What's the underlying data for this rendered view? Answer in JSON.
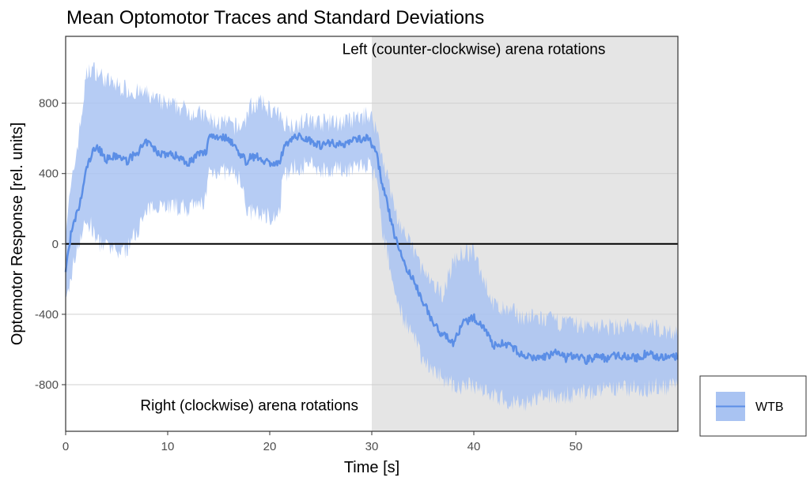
{
  "chart_data": {
    "type": "line",
    "title": "Mean Optomotor Traces and Standard Deviations",
    "xlabel": "Time [s]",
    "ylabel": "Optomotor Response [rel. units]",
    "xlim": [
      0,
      60
    ],
    "ylim": [
      -1065,
      1180
    ],
    "xticks": [
      0,
      10,
      20,
      30,
      40,
      50
    ],
    "xtick_labels": [
      "0",
      "10",
      "20",
      "30",
      "40",
      "50"
    ],
    "yticks": [
      -800,
      -400,
      0,
      400,
      800
    ],
    "ytick_labels": [
      "-800",
      "-400",
      "0",
      "400",
      "800"
    ],
    "grid": true,
    "reference_line": {
      "y": 0,
      "color": "#000000"
    },
    "shaded_region": {
      "x_start": 30,
      "x_end": 60,
      "color": "#e5e5e5"
    },
    "annotations": [
      {
        "text": "Left (counter-clockwise) arena rotations",
        "x": 40,
        "y": 1080
      },
      {
        "text": "Right (clockwise) arena rotations",
        "x": 18,
        "y": -945
      }
    ],
    "legend": {
      "position": "bottom-right",
      "entries": [
        {
          "label": "WTB",
          "line_color": "#5b8ee6",
          "fill_color": "#a9c3f2"
        }
      ]
    },
    "series": [
      {
        "name": "WTB",
        "line_color": "#5b8ee6",
        "band_color": "#a9c3f2",
        "x": [
          0,
          0.5,
          1,
          1.5,
          2,
          2.5,
          3,
          4,
          5,
          6,
          7,
          8,
          9,
          10,
          11,
          12,
          13,
          13.8,
          14,
          15,
          16,
          17,
          17.8,
          18,
          19,
          20,
          21,
          21.2,
          22,
          23,
          24,
          25,
          26,
          27,
          28,
          29,
          29.8,
          30.5,
          31,
          31.5,
          32,
          32.5,
          33,
          33.5,
          34,
          35,
          36,
          37,
          38,
          39,
          40,
          41,
          41.5,
          42,
          43,
          44,
          45,
          46,
          47,
          48,
          49,
          50,
          51,
          52,
          53,
          54,
          55,
          56,
          57,
          58,
          59,
          60
        ],
        "mean": [
          -150,
          50,
          150,
          250,
          420,
          500,
          560,
          480,
          500,
          470,
          520,
          580,
          520,
          510,
          500,
          460,
          510,
          520,
          620,
          610,
          600,
          520,
          460,
          500,
          490,
          460,
          450,
          520,
          600,
          610,
          590,
          560,
          580,
          560,
          590,
          600,
          600,
          500,
          350,
          230,
          100,
          0,
          -80,
          -150,
          -200,
          -320,
          -450,
          -520,
          -560,
          -450,
          -420,
          -470,
          -530,
          -580,
          -560,
          -600,
          -640,
          -650,
          -640,
          -620,
          -650,
          -630,
          -660,
          -640,
          -650,
          -630,
          -640,
          -650,
          -620,
          -640,
          -650,
          -640
        ],
        "sd_upper": [
          100,
          300,
          500,
          700,
          950,
          1000,
          980,
          930,
          900,
          880,
          860,
          850,
          810,
          790,
          780,
          760,
          740,
          720,
          700,
          690,
          680,
          660,
          720,
          780,
          800,
          770,
          720,
          700,
          680,
          690,
          700,
          690,
          690,
          690,
          700,
          720,
          740,
          650,
          500,
          400,
          250,
          150,
          80,
          20,
          -20,
          -150,
          -250,
          -280,
          -100,
          -50,
          -50,
          -200,
          -280,
          -350,
          -380,
          -390,
          -420,
          -420,
          -430,
          -440,
          -450,
          -460,
          -470,
          -460,
          -480,
          -470,
          -460,
          -490,
          -470,
          -480,
          -500,
          -500
        ],
        "sd_lower": [
          -350,
          -200,
          -50,
          50,
          120,
          100,
          20,
          -20,
          -50,
          -30,
          80,
          180,
          230,
          220,
          210,
          200,
          210,
          270,
          410,
          420,
          400,
          380,
          190,
          180,
          170,
          160,
          160,
          360,
          430,
          440,
          450,
          420,
          430,
          420,
          430,
          450,
          440,
          350,
          100,
          -50,
          -200,
          -320,
          -400,
          -470,
          -520,
          -650,
          -720,
          -760,
          -800,
          -820,
          -800,
          -820,
          -840,
          -870,
          -880,
          -900,
          -920,
          -880,
          -870,
          -860,
          -860,
          -850,
          -840,
          -840,
          -830,
          -830,
          -820,
          -820,
          -820,
          -810,
          -810,
          -810
        ]
      }
    ]
  }
}
